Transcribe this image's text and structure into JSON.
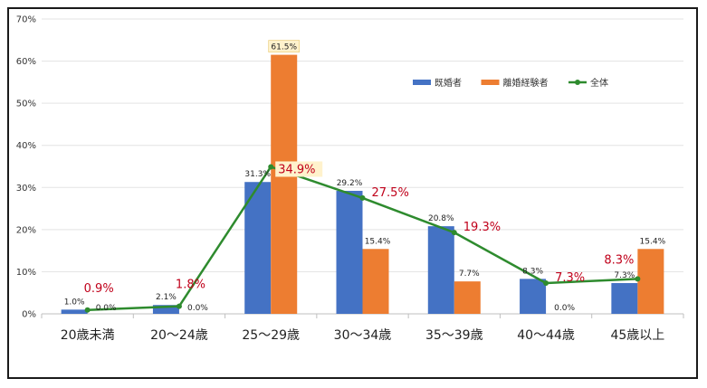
{
  "chart_data": {
    "type": "bar",
    "categories": [
      "20歳未満",
      "20～24歳",
      "25～29歳",
      "30～34歳",
      "35～39歳",
      "40～44歳",
      "45歳以上"
    ],
    "series": [
      {
        "name": "既婚者",
        "kind": "bar",
        "color": "#4472C4",
        "values": [
          1.0,
          2.1,
          31.3,
          29.2,
          20.8,
          8.3,
          7.3
        ],
        "labels": [
          "1.0%",
          "2.1%",
          "31.3%",
          "29.2%",
          "20.8%",
          "8.3%",
          "7.3%"
        ]
      },
      {
        "name": "離婚経験者",
        "kind": "bar",
        "color": "#ED7D31",
        "values": [
          0.0,
          0.0,
          61.5,
          15.4,
          7.7,
          0.0,
          15.4
        ],
        "labels": [
          "0.0%",
          "0.0%",
          "61.5%",
          "15.4%",
          "7.7%",
          "0.0%",
          "15.4%"
        ]
      },
      {
        "name": "全体",
        "kind": "line",
        "color": "#2E8B2E",
        "values": [
          0.9,
          1.8,
          34.9,
          27.5,
          19.3,
          7.3,
          8.3
        ],
        "labels": [
          "0.9%",
          "1.8%",
          "34.9%",
          "27.5%",
          "19.3%",
          "7.3%",
          "8.3%"
        ]
      }
    ],
    "y_ticks": [
      "0%",
      "10%",
      "20%",
      "30%",
      "40%",
      "50%",
      "60%",
      "70%"
    ],
    "ylim": [
      0,
      70
    ],
    "highlight_color": "#FFF2CC",
    "grid": true,
    "legend_position": "top-right",
    "title": "",
    "xlabel": "",
    "ylabel": ""
  }
}
